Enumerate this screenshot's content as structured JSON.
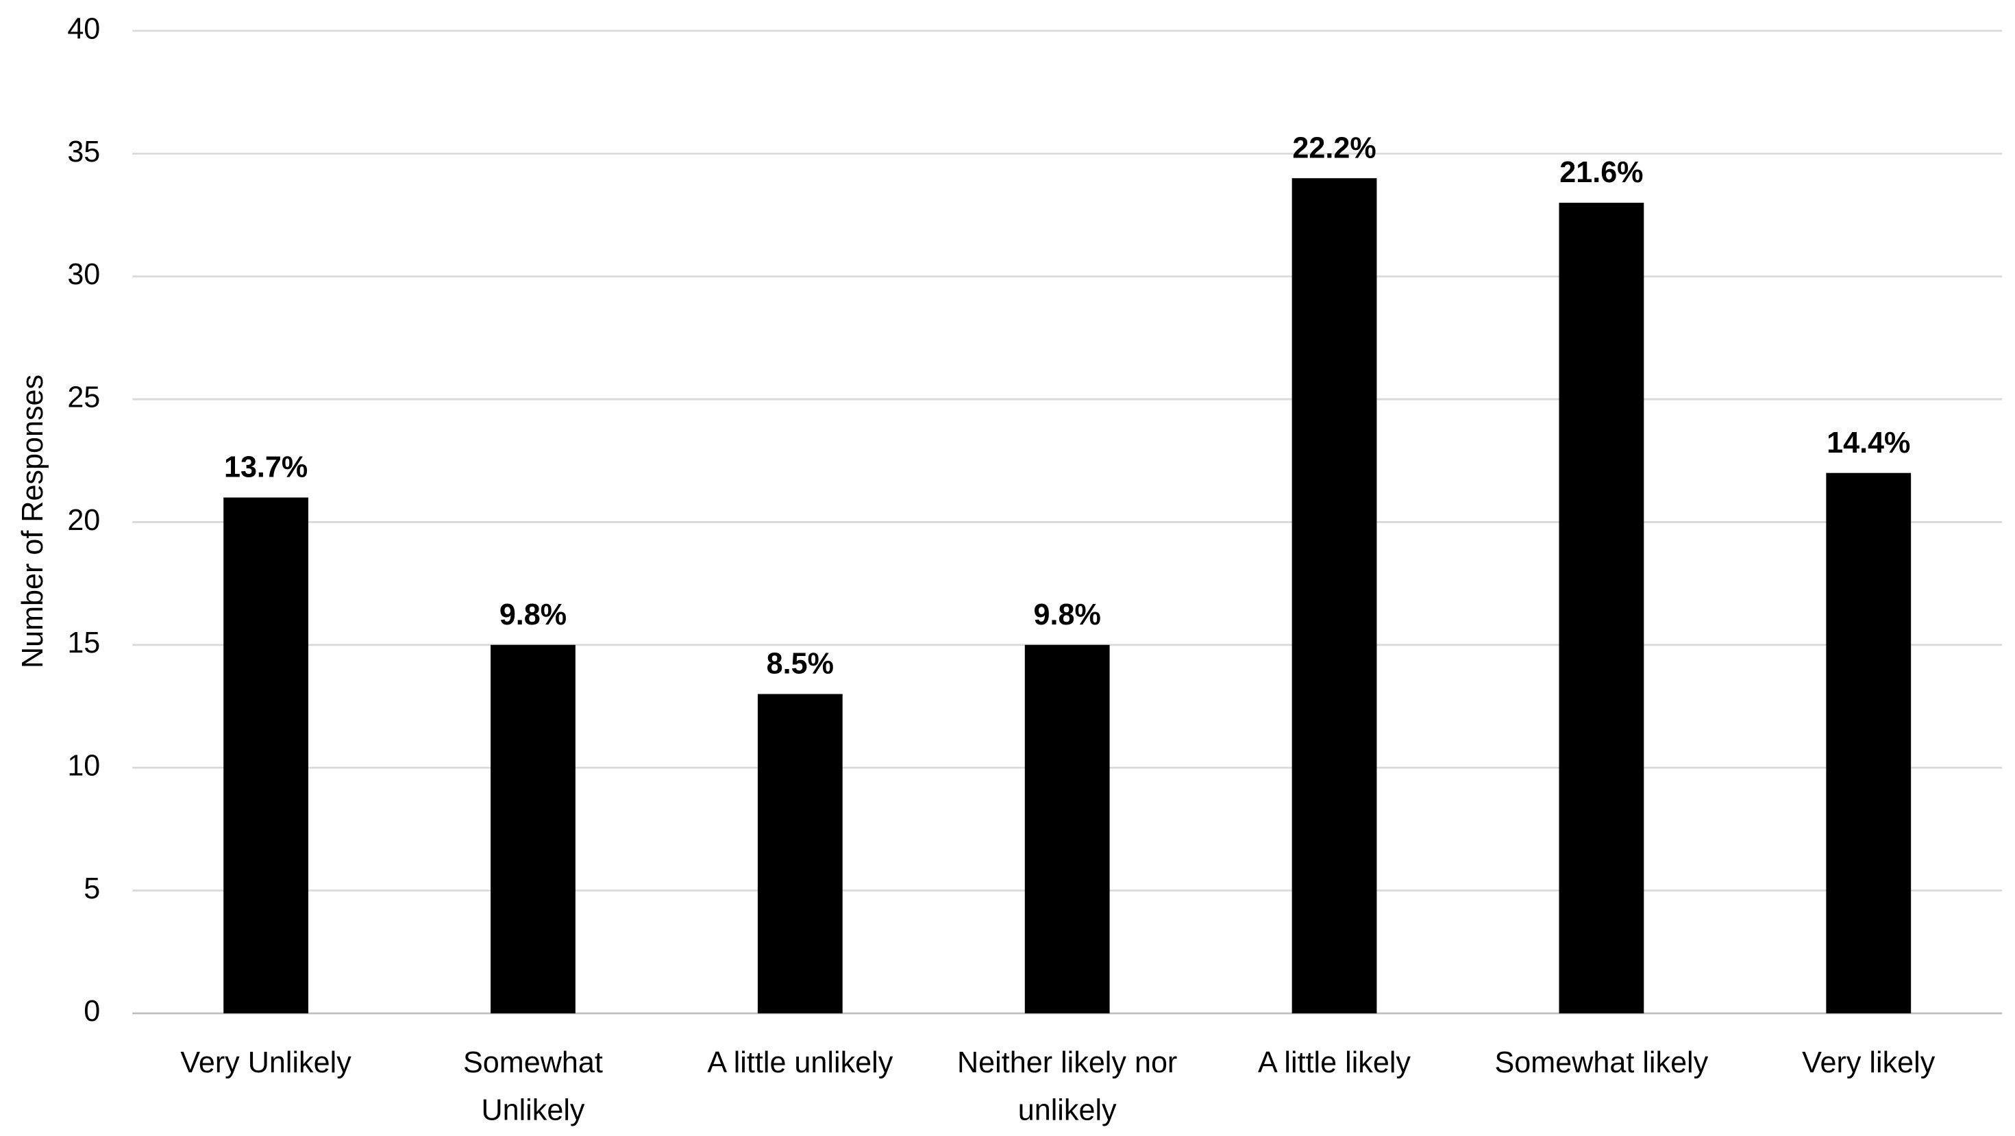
{
  "chart_data": {
    "type": "bar",
    "y_label": "Number of Responses",
    "categories": [
      "Very Unlikely",
      "Somewhat Unlikely",
      "A little unlikely",
      "Neither likely nor unlikely",
      "A little likely",
      "Somewhat likely",
      "Very likely"
    ],
    "values": [
      21,
      15,
      13,
      15,
      34,
      33,
      22
    ],
    "value_labels": [
      "13.7%",
      "9.8%",
      "8.5%",
      "9.8%",
      "22.2%",
      "21.6%",
      "14.4%"
    ],
    "color": "#000000",
    "ylim": [
      0,
      40
    ],
    "yticks": [
      0,
      5,
      10,
      15,
      20,
      25,
      30,
      35,
      40
    ],
    "grid": true
  }
}
